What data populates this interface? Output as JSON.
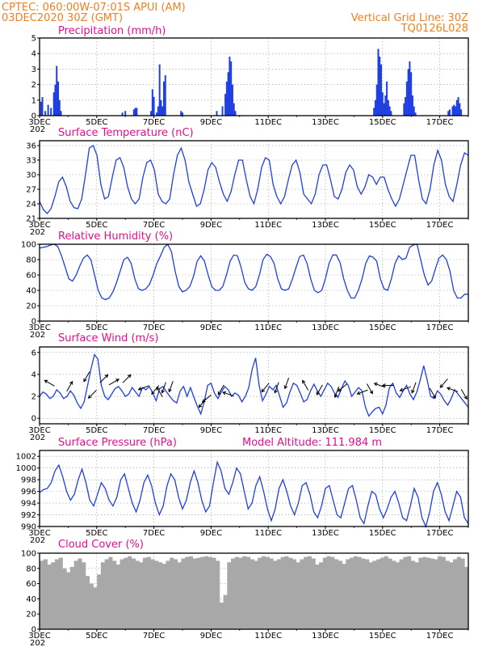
{
  "header": {
    "line1": "CPTEC:   060:00W-07:01S   APUI (AM)",
    "line2": "03DEC2020 30Z (GMT)",
    "grid_note": "Vertical Grid Line: 30Z",
    "code": "TQ0126L028"
  },
  "x_tick_labels": [
    "3DEC",
    "5DEC",
    "7DEC",
    "9DEC",
    "11DEC",
    "13DEC",
    "15DEC",
    "17DEC"
  ],
  "x_tick_days": [
    3,
    5,
    7,
    9,
    11,
    13,
    15,
    17
  ],
  "x_range_days": [
    3,
    18
  ],
  "year_fragment": "202",
  "colors": {
    "line": "#1f3fe0",
    "bar": "#1f3fe0",
    "cloud": "#a8a8a8",
    "title": "#e0108a",
    "header": "#f08020",
    "grid": "#999999"
  },
  "chart_data": [
    {
      "type": "bar",
      "title": "Precipitation (mm/h)",
      "ylim": [
        0,
        5
      ],
      "yticks": [
        0,
        1,
        2,
        3,
        4,
        5
      ],
      "x": [
        3.05,
        3.1,
        3.2,
        3.3,
        3.4,
        3.5,
        3.55,
        3.6,
        3.65,
        3.7,
        3.75,
        5.9,
        6.0,
        6.3,
        6.35,
        6.4,
        6.9,
        6.95,
        7.0,
        7.1,
        7.15,
        7.2,
        7.25,
        7.3,
        7.35,
        7.4,
        7.95,
        8.0,
        9.2,
        9.4,
        9.5,
        9.55,
        9.6,
        9.65,
        9.7,
        9.75,
        9.8,
        9.85,
        14.7,
        14.75,
        14.8,
        14.85,
        14.9,
        14.95,
        15.0,
        15.05,
        15.1,
        15.15,
        15.2,
        15.25,
        15.3,
        15.75,
        15.8,
        15.85,
        15.9,
        15.95,
        16.0,
        16.05,
        16.1,
        16.15,
        17.3,
        17.35,
        17.45,
        17.5,
        17.55,
        17.6,
        17.65,
        17.7,
        17.75
      ],
      "values": [
        0.9,
        1.2,
        0.3,
        0.7,
        0.5,
        1.5,
        2.0,
        3.2,
        2.2,
        1.0,
        0.3,
        0.2,
        0.3,
        0.4,
        0.5,
        0.5,
        0.3,
        1.7,
        1.2,
        0.2,
        0.6,
        3.3,
        1.0,
        0.6,
        2.2,
        2.6,
        0.3,
        0.2,
        0.3,
        0.6,
        1.4,
        2.2,
        2.8,
        3.8,
        3.5,
        2.0,
        0.8,
        0.3,
        0.5,
        1.0,
        2.0,
        4.3,
        3.8,
        3.3,
        1.5,
        0.8,
        1.3,
        2.2,
        1.0,
        0.6,
        0.3,
        0.8,
        1.2,
        2.2,
        3.0,
        3.5,
        2.8,
        1.3,
        0.6,
        0.2,
        0.3,
        0.4,
        0.6,
        0.7,
        0.6,
        1.0,
        1.2,
        0.8,
        0.4
      ]
    },
    {
      "type": "line",
      "title": "Surface Temperature (nC)",
      "ylim": [
        21,
        37
      ],
      "yticks": [
        21,
        24,
        27,
        30,
        33,
        36
      ],
      "series": [
        {
          "values": [
            24.5,
            22.8,
            22.0,
            23.0,
            25.5,
            28.5,
            29.5,
            27.5,
            24.5,
            23.2,
            23.0,
            25.0,
            30.0,
            35.5,
            36.0,
            34.0,
            28.0,
            25.0,
            25.5,
            29.5,
            33.0,
            33.5,
            31.5,
            27.5,
            25.0,
            24.0,
            25.0,
            29.5,
            32.5,
            33.0,
            31.0,
            26.0,
            24.5,
            24.0,
            25.0,
            30.0,
            34.0,
            35.5,
            33.0,
            28.5,
            26.0,
            23.5,
            24.0,
            27.0,
            31.0,
            32.5,
            31.5,
            28.5,
            26.0,
            24.5,
            26.5,
            30.0,
            33.0,
            33.0,
            29.0,
            25.5,
            24.0,
            27.0,
            31.5,
            33.5,
            33.0,
            28.0,
            25.5,
            24.0,
            25.5,
            29.0,
            32.0,
            33.0,
            30.5,
            26.0,
            25.0,
            24.0,
            26.0,
            30.0,
            32.0,
            32.0,
            29.0,
            25.5,
            25.0,
            27.0,
            30.5,
            32.0,
            31.0,
            27.5,
            26.0,
            27.5,
            30.0,
            29.5,
            28.0,
            29.5,
            29.5,
            27.0,
            25.0,
            23.5,
            25.0,
            28.0,
            31.0,
            34.0,
            34.0,
            29.0,
            25.0,
            24.0,
            27.0,
            32.0,
            35.0,
            33.0,
            28.0,
            25.5,
            24.5,
            28.0,
            32.0,
            34.5,
            34.0
          ]
        }
      ]
    },
    {
      "type": "line",
      "title": "Relative Humidity (%)",
      "ylim": [
        0,
        100
      ],
      "yticks": [
        0,
        20,
        40,
        60,
        80,
        100
      ],
      "series": [
        {
          "values": [
            95,
            96,
            97,
            99,
            100,
            97,
            85,
            70,
            55,
            52,
            60,
            72,
            82,
            86,
            80,
            60,
            40,
            30,
            28,
            30,
            38,
            50,
            65,
            80,
            83,
            75,
            55,
            42,
            40,
            42,
            48,
            60,
            75,
            85,
            96,
            100,
            90,
            65,
            45,
            38,
            40,
            45,
            58,
            78,
            85,
            78,
            60,
            45,
            40,
            40,
            45,
            60,
            78,
            86,
            85,
            70,
            50,
            42,
            40,
            45,
            60,
            80,
            87,
            84,
            75,
            55,
            42,
            40,
            42,
            55,
            70,
            84,
            86,
            75,
            55,
            40,
            37,
            40,
            55,
            75,
            86,
            86,
            76,
            55,
            40,
            30,
            30,
            40,
            55,
            75,
            85,
            83,
            78,
            55,
            42,
            40,
            55,
            75,
            85,
            80,
            82,
            96,
            99,
            100,
            80,
            60,
            47,
            52,
            68,
            82,
            86,
            80,
            65,
            40,
            30,
            30,
            35,
            35
          ]
        }
      ]
    },
    {
      "type": "line",
      "title": "Surface Wind (m/s)",
      "ylim": [
        -0.5,
        6.5
      ],
      "yticks": [
        0,
        2,
        4,
        6
      ],
      "series": [
        {
          "values": [
            2.0,
            2.4,
            2.2,
            1.8,
            2.0,
            2.6,
            2.3,
            1.8,
            2.0,
            2.5,
            2.1,
            1.4,
            0.9,
            1.5,
            3.0,
            4.5,
            5.8,
            5.4,
            3.0,
            2.0,
            1.7,
            2.2,
            2.7,
            2.9,
            2.5,
            2.0,
            2.2,
            2.8,
            2.4,
            2.0,
            2.8,
            2.6,
            2.9,
            2.3,
            1.6,
            2.7,
            2.9,
            2.4,
            2.0,
            1.6,
            1.4,
            2.5,
            2.9,
            2.0,
            2.8,
            1.9,
            1.1,
            0.4,
            1.5,
            3.0,
            3.2,
            2.3,
            1.8,
            2.4,
            2.9,
            2.6,
            2.0,
            2.3,
            2.1,
            1.5,
            2.0,
            2.8,
            4.5,
            5.5,
            3.0,
            1.6,
            2.2,
            2.9,
            2.6,
            3.0,
            2.0,
            1.0,
            1.4,
            2.4,
            3.2,
            3.0,
            2.3,
            1.5,
            1.7,
            2.5,
            3.1,
            2.5,
            2.0,
            2.6,
            3.2,
            2.9,
            2.3,
            1.9,
            2.7,
            3.4,
            3.0,
            2.0,
            2.4,
            2.8,
            2.5,
            1.0,
            0.2,
            0.6,
            0.9,
            1.0,
            0.4,
            1.2,
            2.8,
            3.2,
            2.3,
            1.9,
            2.5,
            3.0,
            2.2,
            1.7,
            2.4,
            3.5,
            4.8,
            3.5,
            2.0,
            1.8,
            2.5,
            2.2,
            1.6,
            1.2,
            1.8,
            2.6,
            2.2,
            1.8,
            1.4,
            1.0
          ]
        }
      ],
      "arrows": {
        "x": [
          3.35,
          4.05,
          4.65,
          4.85,
          5.25,
          5.6,
          6.05,
          6.65,
          7.05,
          7.2,
          7.35,
          7.6,
          8.7,
          8.85,
          9.35,
          9.6,
          10.9,
          11.3,
          11.65,
          12.3,
          12.8,
          13.4,
          13.6,
          14.3,
          14.55,
          14.9,
          15.2,
          15.8,
          16.1,
          16.75,
          17.15,
          17.45,
          17.85
        ],
        "y": [
          3.2,
          2.9,
          3.8,
          2.2,
          3.6,
          3.3,
          3.6,
          2.8,
          2.6,
          2.4,
          2.8,
          2.9,
          1.4,
          1.8,
          2.6,
          2.2,
          2.8,
          2.8,
          3.2,
          3.0,
          2.6,
          2.4,
          2.8,
          2.4,
          2.7,
          3.0,
          3.0,
          2.7,
          2.8,
          2.3,
          3.2,
          2.6,
          2.2
        ],
        "angle_deg": [
          150,
          60,
          240,
          225,
          45,
          30,
          45,
          200,
          230,
          120,
          250,
          250,
          230,
          220,
          240,
          160,
          230,
          250,
          250,
          120,
          240,
          250,
          220,
          200,
          300,
          160,
          180,
          200,
          250,
          300,
          230,
          160,
          300
        ]
      }
    },
    {
      "type": "line",
      "title": "Surface Pressure (hPa)",
      "annotation": "Model Altitude: 111.984  m",
      "ylim": [
        990,
        1003
      ],
      "yticks": [
        990,
        992,
        994,
        996,
        998,
        1000,
        1002
      ],
      "series": [
        {
          "values": [
            995.8,
            996.3,
            996.5,
            997.5,
            999.5,
            1000.5,
            998.5,
            996.0,
            994.5,
            995.5,
            998.0,
            999.8,
            997.5,
            994.5,
            993.5,
            995.5,
            997.5,
            996.5,
            994.5,
            993.5,
            995.0,
            998.0,
            999.0,
            996.5,
            994.0,
            992.5,
            994.5,
            997.5,
            998.8,
            997.0,
            994.0,
            992.0,
            993.5,
            997.0,
            999.0,
            998.0,
            995.0,
            993.0,
            994.5,
            997.5,
            999.5,
            997.5,
            994.5,
            992.5,
            993.5,
            997.5,
            1001.0,
            999.5,
            996.5,
            995.5,
            997.5,
            1000.0,
            999.0,
            996.0,
            993.0,
            994.0,
            997.0,
            998.5,
            996.0,
            993.0,
            991.0,
            993.0,
            996.5,
            998.0,
            996.0,
            993.5,
            992.0,
            994.0,
            997.0,
            997.5,
            995.5,
            992.5,
            991.5,
            993.5,
            996.5,
            997.0,
            994.5,
            992.0,
            991.5,
            994.0,
            996.5,
            997.0,
            994.5,
            991.5,
            990.5,
            993.5,
            996.0,
            995.5,
            993.0,
            991.5,
            993.0,
            995.0,
            996.0,
            994.0,
            991.5,
            991.0,
            993.5,
            996.5,
            995.0,
            991.5,
            990.0,
            992.5,
            996.0,
            997.5,
            995.5,
            992.5,
            991.0,
            993.5,
            996.0,
            995.0,
            991.5,
            990.5
          ]
        }
      ]
    },
    {
      "type": "bar",
      "title": "Cloud Cover (%)",
      "ylim": [
        0,
        100
      ],
      "yticks": [
        0,
        20,
        40,
        60,
        80,
        100
      ],
      "series": [
        {
          "values": [
            90,
            92,
            85,
            88,
            92,
            94,
            80,
            75,
            82,
            90,
            93,
            88,
            70,
            60,
            55,
            72,
            88,
            92,
            95,
            90,
            85,
            92,
            94,
            96,
            93,
            90,
            88,
            94,
            95,
            92,
            90,
            88,
            86,
            90,
            94,
            92,
            88,
            93,
            95,
            96,
            93,
            94,
            95,
            96,
            95,
            94,
            90,
            35,
            45,
            88,
            93,
            95,
            94,
            96,
            95,
            92,
            90,
            94,
            96,
            95,
            93,
            90,
            92,
            95,
            96,
            94,
            92,
            88,
            92,
            95,
            96,
            93,
            85,
            88,
            94,
            96,
            95,
            92,
            90,
            86,
            92,
            94,
            96,
            95,
            93,
            92,
            88,
            90,
            92,
            94,
            96,
            93,
            90,
            88,
            92,
            95,
            96,
            90,
            88,
            94,
            95,
            94,
            93,
            92,
            96,
            95,
            90,
            88,
            92,
            95,
            93,
            82
          ]
        }
      ]
    }
  ]
}
